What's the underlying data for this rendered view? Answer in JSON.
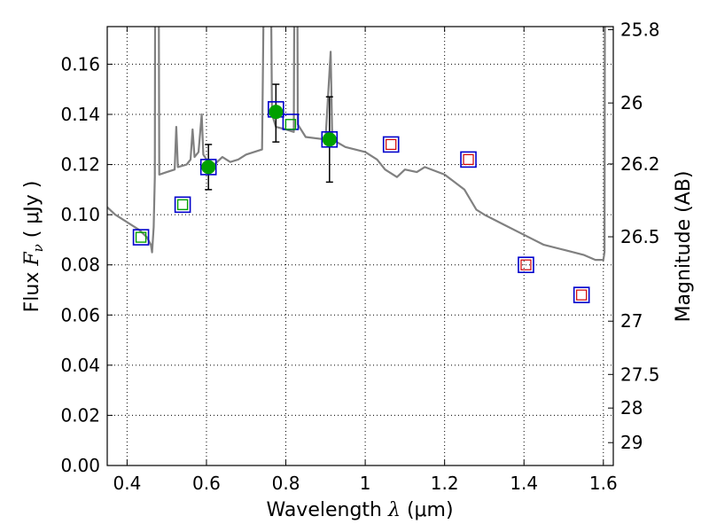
{
  "chart_data": {
    "type": "scatter",
    "title": "",
    "xlabel_prefix": "Wavelength",
    "xlabel_symbol": "λ",
    "xlabel_unit": "(μm)",
    "ylabel_prefix": "Flux",
    "ylabel_symbol": "F",
    "ylabel_subscript": "ν",
    "ylabel_unit": "( μJy )",
    "y2label": "Magnitude (AB)",
    "xlim": [
      0.35,
      1.625
    ],
    "ylim": [
      0.0,
      0.175
    ],
    "grid": true,
    "x_ticks": [
      0.4,
      0.6,
      0.8,
      1.0,
      1.2,
      1.4,
      1.6
    ],
    "x_tick_labels": [
      "0.4",
      "0.6",
      "0.8",
      "1",
      "1.2",
      "1.4",
      "1.6"
    ],
    "y_ticks": [
      0.0,
      0.02,
      0.04,
      0.06,
      0.08,
      0.1,
      0.12,
      0.14,
      0.16
    ],
    "y_tick_labels": [
      "0.00",
      "0.02",
      "0.04",
      "0.06",
      "0.08",
      "0.10",
      "0.12",
      "0.14",
      "0.16"
    ],
    "y2_ticks": [
      25.8,
      26,
      26.2,
      26.5,
      27,
      27.5,
      28,
      29
    ],
    "y2_tick_labels": [
      "25.8",
      "26",
      "26.2",
      "26.5",
      "27",
      "27.5",
      "28",
      "29"
    ],
    "colors": {
      "model": "#808080",
      "observed_fill": "#00a000",
      "model_box": "#0000cc",
      "green_box": "#00a000",
      "red_box": "#d00000",
      "errorbar": "#000000"
    },
    "series": [
      {
        "name": "model SED",
        "kind": "line",
        "points": [
          [
            0.35,
            0.103
          ],
          [
            0.37,
            0.1
          ],
          [
            0.4,
            0.097
          ],
          [
            0.43,
            0.094
          ],
          [
            0.45,
            0.091
          ],
          [
            0.46,
            0.088
          ],
          [
            0.463,
            0.085
          ],
          [
            0.467,
            0.095
          ],
          [
            0.47,
            0.115
          ],
          [
            0.472,
            0.3
          ],
          [
            0.478,
            0.3
          ],
          [
            0.481,
            0.116
          ],
          [
            0.5,
            0.117
          ],
          [
            0.52,
            0.118
          ],
          [
            0.524,
            0.135
          ],
          [
            0.528,
            0.119
          ],
          [
            0.55,
            0.12
          ],
          [
            0.56,
            0.122
          ],
          [
            0.565,
            0.134
          ],
          [
            0.57,
            0.123
          ],
          [
            0.58,
            0.125
          ],
          [
            0.588,
            0.14
          ],
          [
            0.592,
            0.124
          ],
          [
            0.6,
            0.122
          ],
          [
            0.62,
            0.12
          ],
          [
            0.64,
            0.123
          ],
          [
            0.66,
            0.121
          ],
          [
            0.68,
            0.122
          ],
          [
            0.7,
            0.124
          ],
          [
            0.72,
            0.125
          ],
          [
            0.74,
            0.126
          ],
          [
            0.752,
            0.3
          ],
          [
            0.757,
            0.3
          ],
          [
            0.765,
            0.14
          ],
          [
            0.775,
            0.135
          ],
          [
            0.8,
            0.134
          ],
          [
            0.82,
            0.133
          ],
          [
            0.824,
            0.3
          ],
          [
            0.827,
            0.3
          ],
          [
            0.83,
            0.136
          ],
          [
            0.85,
            0.131
          ],
          [
            0.9,
            0.13
          ],
          [
            0.913,
            0.165
          ],
          [
            0.917,
            0.13
          ],
          [
            0.95,
            0.127
          ],
          [
            1.0,
            0.125
          ],
          [
            1.03,
            0.122
          ],
          [
            1.05,
            0.118
          ],
          [
            1.08,
            0.115
          ],
          [
            1.1,
            0.118
          ],
          [
            1.13,
            0.117
          ],
          [
            1.15,
            0.119
          ],
          [
            1.2,
            0.116
          ],
          [
            1.25,
            0.11
          ],
          [
            1.28,
            0.102
          ],
          [
            1.3,
            0.1
          ],
          [
            1.35,
            0.096
          ],
          [
            1.4,
            0.092
          ],
          [
            1.45,
            0.088
          ],
          [
            1.5,
            0.086
          ],
          [
            1.55,
            0.084
          ],
          [
            1.58,
            0.082
          ],
          [
            1.6,
            0.082
          ],
          [
            1.603,
            0.085
          ],
          [
            1.605,
            0.3
          ],
          [
            1.625,
            0.3
          ]
        ]
      },
      {
        "name": "observed",
        "kind": "points-with-errors",
        "points": [
          {
            "x": 0.605,
            "y": 0.119,
            "yerr": [
              0.009,
              0.009
            ]
          },
          {
            "x": 0.775,
            "y": 0.141,
            "yerr": [
              0.012,
              0.011
            ]
          },
          {
            "x": 0.91,
            "y": 0.13,
            "yerr": [
              0.017,
              0.017
            ]
          }
        ]
      },
      {
        "name": "model fluxes (blue boxes)",
        "kind": "square-marker",
        "points": [
          [
            0.435,
            0.091
          ],
          [
            0.54,
            0.104
          ],
          [
            0.605,
            0.119
          ],
          [
            0.775,
            0.142
          ],
          [
            0.812,
            0.137
          ],
          [
            0.91,
            0.13
          ],
          [
            1.065,
            0.128
          ],
          [
            1.26,
            0.122
          ],
          [
            1.405,
            0.08
          ],
          [
            1.545,
            0.068
          ]
        ]
      },
      {
        "name": "band fluxes (green boxes)",
        "kind": "square-marker",
        "points": [
          [
            0.435,
            0.091
          ],
          [
            0.54,
            0.104
          ],
          [
            0.812,
            0.136
          ]
        ]
      },
      {
        "name": "band fluxes (red boxes)",
        "kind": "square-marker",
        "points": [
          [
            1.065,
            0.128
          ],
          [
            1.26,
            0.122
          ],
          [
            1.405,
            0.08
          ],
          [
            1.545,
            0.068
          ]
        ]
      }
    ]
  }
}
